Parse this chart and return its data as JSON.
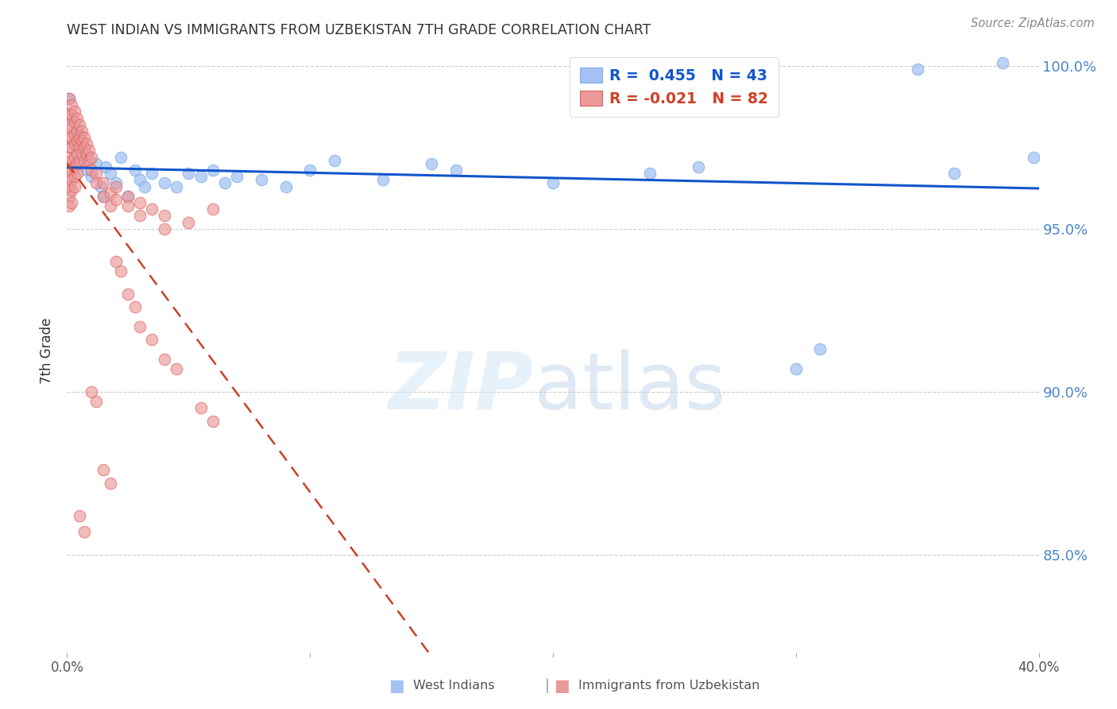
{
  "title": "WEST INDIAN VS IMMIGRANTS FROM UZBEKISTAN 7TH GRADE CORRELATION CHART",
  "source": "Source: ZipAtlas.com",
  "ylabel": "7th Grade",
  "xlim": [
    0.0,
    0.4
  ],
  "ylim": [
    0.82,
    1.005
  ],
  "yticks": [
    0.85,
    0.9,
    0.95,
    1.0
  ],
  "ytick_labels": [
    "85.0%",
    "90.0%",
    "95.0%",
    "100.0%"
  ],
  "legend_blue_r": "R =  0.455",
  "legend_blue_n": "N = 43",
  "legend_pink_r": "R = -0.021",
  "legend_pink_n": "N = 82",
  "blue_color": "#a4c2f4",
  "pink_color": "#ea9999",
  "blue_line_color": "#1155cc",
  "pink_line_color": "#cc4125",
  "grid_color": "#cccccc",
  "right_axis_color": "#4a86c8",
  "title_color": "#333333",
  "blue_points": [
    [
      0.001,
      0.99
    ],
    [
      0.002,
      0.984
    ],
    [
      0.003,
      0.98
    ],
    [
      0.004,
      0.976
    ],
    [
      0.005,
      0.979
    ],
    [
      0.006,
      0.972
    ],
    [
      0.008,
      0.968
    ],
    [
      0.01,
      0.966
    ],
    [
      0.012,
      0.97
    ],
    [
      0.014,
      0.963
    ],
    [
      0.015,
      0.96
    ],
    [
      0.016,
      0.969
    ],
    [
      0.018,
      0.967
    ],
    [
      0.02,
      0.964
    ],
    [
      0.022,
      0.972
    ],
    [
      0.025,
      0.96
    ],
    [
      0.028,
      0.968
    ],
    [
      0.03,
      0.965
    ],
    [
      0.032,
      0.963
    ],
    [
      0.035,
      0.967
    ],
    [
      0.04,
      0.964
    ],
    [
      0.045,
      0.963
    ],
    [
      0.05,
      0.967
    ],
    [
      0.055,
      0.966
    ],
    [
      0.06,
      0.968
    ],
    [
      0.065,
      0.964
    ],
    [
      0.07,
      0.966
    ],
    [
      0.08,
      0.965
    ],
    [
      0.09,
      0.963
    ],
    [
      0.1,
      0.968
    ],
    [
      0.11,
      0.971
    ],
    [
      0.13,
      0.965
    ],
    [
      0.15,
      0.97
    ],
    [
      0.16,
      0.968
    ],
    [
      0.2,
      0.964
    ],
    [
      0.24,
      0.967
    ],
    [
      0.26,
      0.969
    ],
    [
      0.3,
      0.907
    ],
    [
      0.31,
      0.913
    ],
    [
      0.35,
      0.999
    ],
    [
      0.365,
      0.967
    ],
    [
      0.385,
      1.001
    ],
    [
      0.398,
      0.972
    ]
  ],
  "pink_points": [
    [
      0.001,
      0.99
    ],
    [
      0.001,
      0.985
    ],
    [
      0.001,
      0.982
    ],
    [
      0.001,
      0.978
    ],
    [
      0.001,
      0.975
    ],
    [
      0.001,
      0.972
    ],
    [
      0.001,
      0.969
    ],
    [
      0.001,
      0.966
    ],
    [
      0.001,
      0.963
    ],
    [
      0.001,
      0.96
    ],
    [
      0.001,
      0.957
    ],
    [
      0.002,
      0.988
    ],
    [
      0.002,
      0.985
    ],
    [
      0.002,
      0.981
    ],
    [
      0.002,
      0.978
    ],
    [
      0.002,
      0.975
    ],
    [
      0.002,
      0.971
    ],
    [
      0.002,
      0.968
    ],
    [
      0.002,
      0.965
    ],
    [
      0.002,
      0.962
    ],
    [
      0.002,
      0.958
    ],
    [
      0.003,
      0.986
    ],
    [
      0.003,
      0.983
    ],
    [
      0.003,
      0.979
    ],
    [
      0.003,
      0.976
    ],
    [
      0.003,
      0.972
    ],
    [
      0.003,
      0.969
    ],
    [
      0.003,
      0.966
    ],
    [
      0.003,
      0.963
    ],
    [
      0.004,
      0.984
    ],
    [
      0.004,
      0.98
    ],
    [
      0.004,
      0.977
    ],
    [
      0.004,
      0.973
    ],
    [
      0.004,
      0.97
    ],
    [
      0.004,
      0.967
    ],
    [
      0.005,
      0.982
    ],
    [
      0.005,
      0.978
    ],
    [
      0.005,
      0.975
    ],
    [
      0.005,
      0.971
    ],
    [
      0.006,
      0.98
    ],
    [
      0.006,
      0.977
    ],
    [
      0.006,
      0.973
    ],
    [
      0.007,
      0.978
    ],
    [
      0.007,
      0.975
    ],
    [
      0.007,
      0.971
    ],
    [
      0.008,
      0.976
    ],
    [
      0.008,
      0.973
    ],
    [
      0.009,
      0.974
    ],
    [
      0.009,
      0.971
    ],
    [
      0.01,
      0.972
    ],
    [
      0.01,
      0.968
    ],
    [
      0.012,
      0.967
    ],
    [
      0.012,
      0.964
    ],
    [
      0.015,
      0.964
    ],
    [
      0.015,
      0.96
    ],
    [
      0.018,
      0.961
    ],
    [
      0.018,
      0.957
    ],
    [
      0.02,
      0.963
    ],
    [
      0.02,
      0.959
    ],
    [
      0.025,
      0.96
    ],
    [
      0.025,
      0.957
    ],
    [
      0.03,
      0.958
    ],
    [
      0.03,
      0.954
    ],
    [
      0.035,
      0.956
    ],
    [
      0.04,
      0.954
    ],
    [
      0.04,
      0.95
    ],
    [
      0.05,
      0.952
    ],
    [
      0.06,
      0.956
    ],
    [
      0.01,
      0.9
    ],
    [
      0.012,
      0.897
    ],
    [
      0.015,
      0.876
    ],
    [
      0.018,
      0.872
    ],
    [
      0.005,
      0.862
    ],
    [
      0.007,
      0.857
    ],
    [
      0.02,
      0.94
    ],
    [
      0.022,
      0.937
    ],
    [
      0.025,
      0.93
    ],
    [
      0.028,
      0.926
    ],
    [
      0.03,
      0.92
    ],
    [
      0.035,
      0.916
    ],
    [
      0.04,
      0.91
    ],
    [
      0.045,
      0.907
    ],
    [
      0.055,
      0.895
    ],
    [
      0.06,
      0.891
    ]
  ]
}
